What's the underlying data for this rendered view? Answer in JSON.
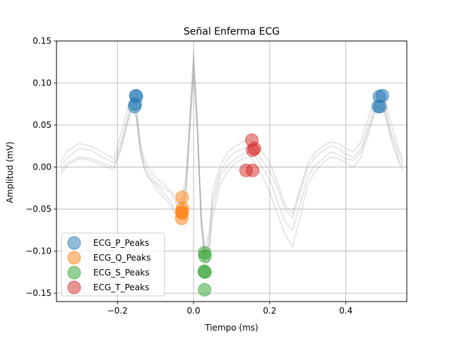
{
  "chart_data": {
    "type": "scatter",
    "title": "Señal Enferma ECG",
    "xlabel": "Tiempo (ms)",
    "ylabel": "Amplitud (mV)",
    "xlim": [
      -0.36,
      0.56
    ],
    "ylim": [
      -0.16,
      0.15
    ],
    "xticks": [
      -0.2,
      0.0,
      0.2,
      0.4
    ],
    "xtick_labels": [
      "−0.2",
      "0.0",
      "0.2",
      "0.4"
    ],
    "yticks": [
      -0.15,
      -0.1,
      -0.05,
      0.0,
      0.05,
      0.1,
      0.15
    ],
    "ytick_labels": [
      "−0.15",
      "−0.10",
      "−0.05",
      "0.00",
      "0.05",
      "0.10",
      "0.15"
    ],
    "grid": true,
    "legend_position": "lower-left",
    "background_traces": [
      {
        "x": [
          -0.35,
          -0.33,
          -0.3,
          -0.27,
          -0.24,
          -0.21,
          -0.19,
          -0.17,
          -0.16,
          -0.15,
          -0.14,
          -0.13,
          -0.12,
          -0.1,
          -0.08,
          -0.06,
          -0.05,
          -0.04,
          -0.03,
          -0.02,
          -0.01,
          0.0,
          0.01,
          0.02,
          0.03,
          0.04,
          0.05,
          0.07,
          0.09,
          0.11,
          0.13,
          0.15,
          0.16,
          0.18,
          0.2,
          0.22,
          0.24,
          0.26,
          0.28,
          0.3,
          0.32,
          0.34,
          0.36,
          0.38,
          0.4,
          0.42,
          0.44,
          0.46,
          0.48,
          0.5,
          0.52,
          0.54,
          0.55
        ],
        "y": [
          0.0,
          0.012,
          0.022,
          0.02,
          0.012,
          0.005,
          0.03,
          0.065,
          0.078,
          0.065,
          0.025,
          0.005,
          -0.005,
          -0.018,
          -0.025,
          -0.03,
          -0.04,
          -0.05,
          -0.042,
          -0.02,
          0.05,
          0.13,
          0.05,
          -0.06,
          -0.105,
          -0.09,
          -0.04,
          -0.005,
          0.01,
          0.018,
          0.022,
          0.022,
          0.02,
          0.008,
          -0.005,
          -0.025,
          -0.05,
          -0.06,
          -0.03,
          0.0,
          0.012,
          0.02,
          0.025,
          0.022,
          0.015,
          0.012,
          0.022,
          0.05,
          0.08,
          0.075,
          0.04,
          0.015,
          0.005
        ]
      },
      {
        "x": [
          -0.35,
          -0.33,
          -0.3,
          -0.27,
          -0.24,
          -0.21,
          -0.19,
          -0.17,
          -0.16,
          -0.15,
          -0.14,
          -0.13,
          -0.12,
          -0.1,
          -0.08,
          -0.06,
          -0.05,
          -0.04,
          -0.03,
          -0.02,
          -0.01,
          0.0,
          0.01,
          0.02,
          0.03,
          0.04,
          0.05,
          0.07,
          0.09,
          0.11,
          0.13,
          0.15,
          0.16,
          0.18,
          0.2,
          0.22,
          0.24,
          0.26,
          0.28,
          0.3,
          0.32,
          0.34,
          0.36,
          0.38,
          0.4,
          0.42,
          0.44,
          0.46,
          0.48,
          0.5,
          0.52,
          0.54,
          0.55
        ],
        "y": [
          0.005,
          0.02,
          0.028,
          0.025,
          0.018,
          0.01,
          0.04,
          0.075,
          0.085,
          0.07,
          0.03,
          0.01,
          0.0,
          -0.012,
          -0.02,
          -0.028,
          -0.035,
          -0.045,
          -0.035,
          -0.01,
          0.06,
          0.138,
          0.055,
          -0.055,
          -0.1,
          -0.08,
          -0.03,
          0.002,
          0.018,
          0.025,
          0.03,
          0.032,
          0.03,
          0.018,
          0.005,
          -0.018,
          -0.045,
          -0.055,
          -0.025,
          0.005,
          0.018,
          0.025,
          0.03,
          0.028,
          0.022,
          0.018,
          0.03,
          0.06,
          0.088,
          0.083,
          0.05,
          0.02,
          0.01
        ]
      },
      {
        "x": [
          -0.35,
          -0.33,
          -0.3,
          -0.27,
          -0.24,
          -0.21,
          -0.19,
          -0.17,
          -0.16,
          -0.15,
          -0.14,
          -0.13,
          -0.12,
          -0.1,
          -0.08,
          -0.06,
          -0.05,
          -0.04,
          -0.03,
          -0.02,
          -0.01,
          0.0,
          0.01,
          0.02,
          0.03,
          0.04,
          0.05,
          0.07,
          0.09,
          0.11,
          0.13,
          0.15,
          0.16,
          0.18,
          0.2,
          0.22,
          0.24,
          0.26,
          0.28,
          0.3,
          0.32,
          0.34,
          0.36,
          0.38,
          0.4,
          0.42,
          0.44,
          0.46,
          0.48,
          0.5,
          0.52,
          0.54,
          0.55
        ],
        "y": [
          -0.005,
          0.005,
          0.012,
          0.01,
          0.005,
          0.0,
          0.025,
          0.06,
          0.072,
          0.06,
          0.02,
          0.0,
          -0.01,
          -0.025,
          -0.035,
          -0.045,
          -0.055,
          -0.06,
          -0.055,
          -0.03,
          0.04,
          0.11,
          0.04,
          -0.07,
          -0.12,
          -0.11,
          -0.06,
          -0.02,
          -0.005,
          0.005,
          0.01,
          0.012,
          0.005,
          -0.01,
          -0.03,
          -0.055,
          -0.08,
          -0.095,
          -0.06,
          -0.02,
          -0.005,
          0.005,
          0.012,
          0.01,
          0.005,
          0.0,
          0.012,
          0.04,
          0.072,
          0.068,
          0.03,
          0.005,
          -0.005
        ]
      },
      {
        "x": [
          -0.35,
          -0.33,
          -0.3,
          -0.27,
          -0.24,
          -0.21,
          -0.19,
          -0.17,
          -0.16,
          -0.15,
          -0.14,
          -0.13,
          -0.12,
          -0.1,
          -0.08,
          -0.06,
          -0.05,
          -0.04,
          -0.03,
          -0.02,
          -0.01,
          0.0,
          0.01,
          0.02,
          0.03,
          0.04,
          0.05,
          0.07,
          0.09,
          0.11,
          0.13,
          0.15,
          0.16,
          0.18,
          0.2,
          0.22,
          0.24,
          0.26,
          0.28,
          0.3,
          0.32,
          0.34,
          0.36,
          0.38,
          0.4,
          0.42,
          0.44,
          0.46,
          0.48,
          0.5,
          0.52,
          0.54,
          0.55
        ],
        "y": [
          -0.008,
          0.002,
          0.01,
          0.008,
          0.002,
          -0.003,
          0.022,
          0.058,
          0.07,
          0.058,
          0.018,
          -0.002,
          -0.012,
          -0.02,
          -0.03,
          -0.04,
          -0.05,
          -0.058,
          -0.05,
          -0.028,
          0.045,
          0.12,
          0.045,
          -0.065,
          -0.112,
          -0.095,
          -0.05,
          -0.01,
          0.002,
          0.01,
          0.015,
          0.018,
          0.015,
          0.0,
          -0.015,
          -0.04,
          -0.065,
          -0.075,
          -0.045,
          -0.01,
          0.002,
          0.01,
          0.018,
          0.015,
          0.01,
          0.008,
          0.018,
          0.045,
          0.072,
          0.07,
          0.035,
          0.008,
          0.0
        ]
      }
    ],
    "series": [
      {
        "name": "ECG_P_Peaks",
        "color": "#1f77b4",
        "x": [
          -0.152,
          -0.15,
          -0.153,
          -0.155,
          0.488,
          0.496,
          0.485,
          0.49
        ],
        "y": [
          0.085,
          0.084,
          0.075,
          0.072,
          0.084,
          0.085,
          0.072,
          0.072
        ]
      },
      {
        "name": "ECG_Q_Peaks",
        "color": "#ff7f0e",
        "x": [
          -0.03,
          -0.029,
          -0.031,
          -0.03,
          -0.031
        ],
        "y": [
          -0.036,
          -0.049,
          -0.053,
          -0.055,
          -0.061
        ]
      },
      {
        "name": "ECG_S_Peaks",
        "color": "#2ca02c",
        "x": [
          0.029,
          0.03,
          0.028,
          0.03,
          0.029
        ],
        "y": [
          -0.102,
          -0.106,
          -0.124,
          -0.125,
          -0.146
        ]
      },
      {
        "name": "ECG_T_Peaks",
        "color": "#d62728",
        "x": [
          0.153,
          0.16,
          0.155,
          0.138,
          0.155
        ],
        "y": [
          0.032,
          0.022,
          0.02,
          -0.004,
          -0.004
        ]
      }
    ]
  }
}
